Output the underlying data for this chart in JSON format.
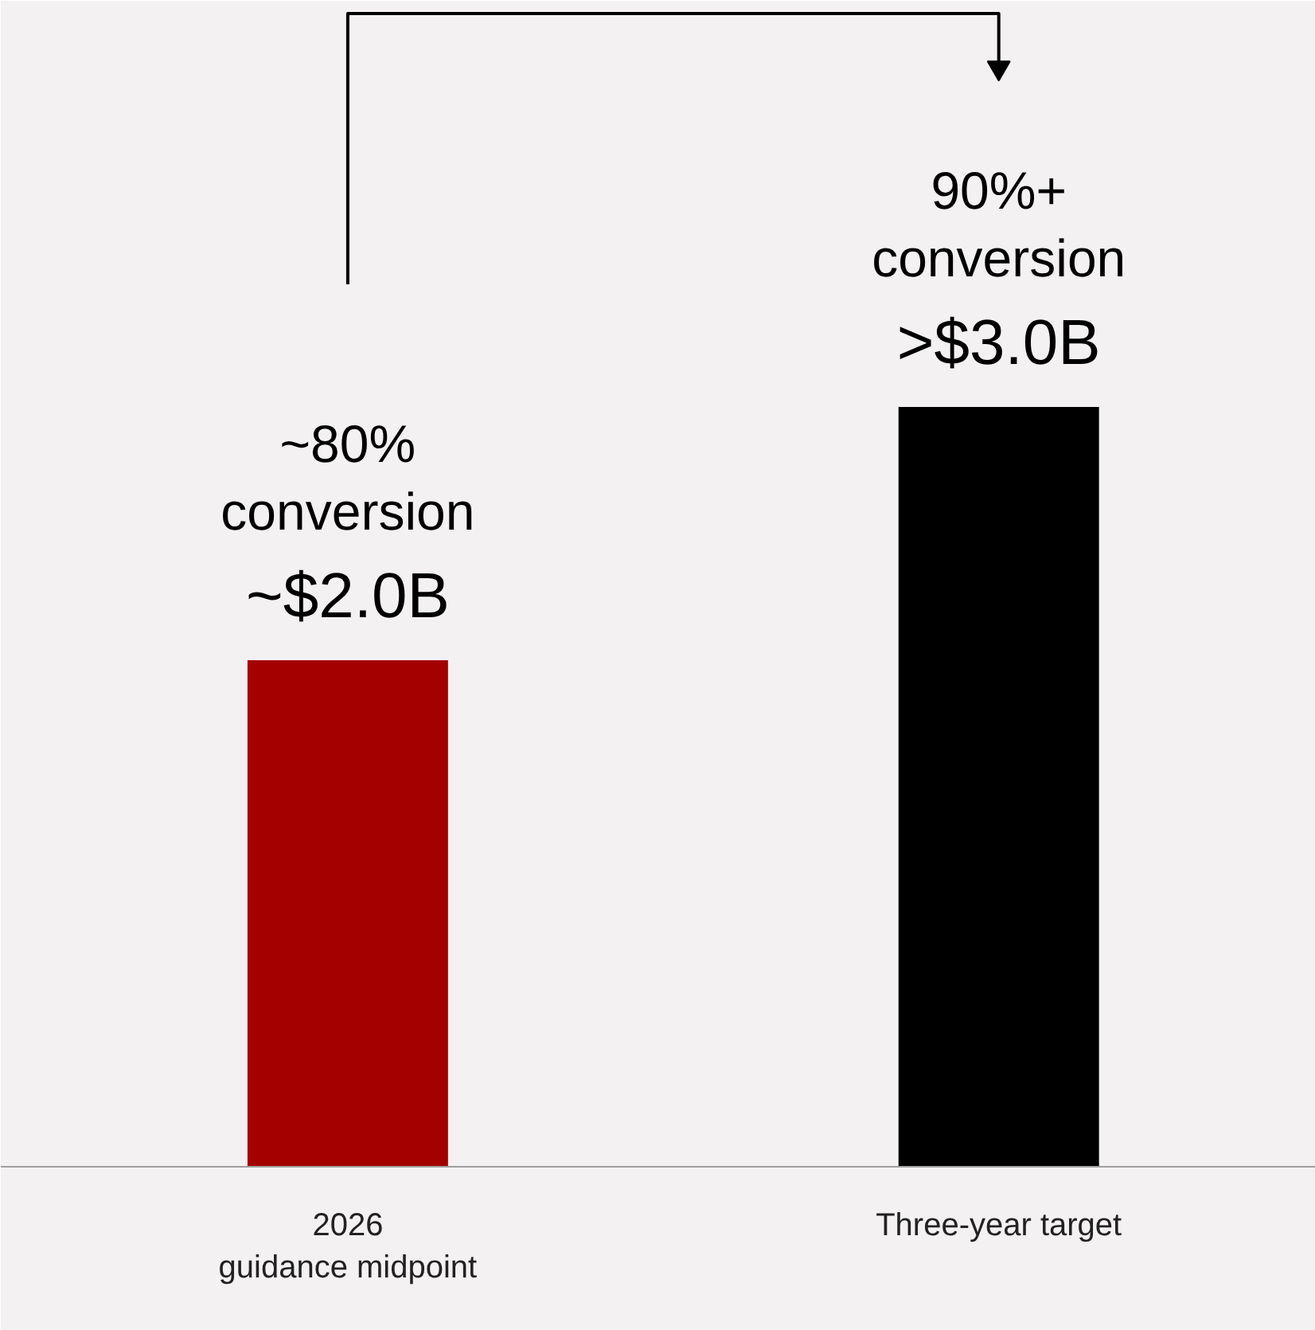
{
  "chart_data": {
    "type": "bar",
    "categories": [
      "2026\nguidance midpoint",
      "Three-year target"
    ],
    "values": [
      2.0,
      3.0
    ],
    "colors": [
      "#a50000",
      "#000000"
    ],
    "value_labels": [
      "~$2.0B",
      ">$3.0B"
    ],
    "annotations": [
      "~80%\nconversion",
      "90%+\nconversion"
    ],
    "grid": false
  }
}
